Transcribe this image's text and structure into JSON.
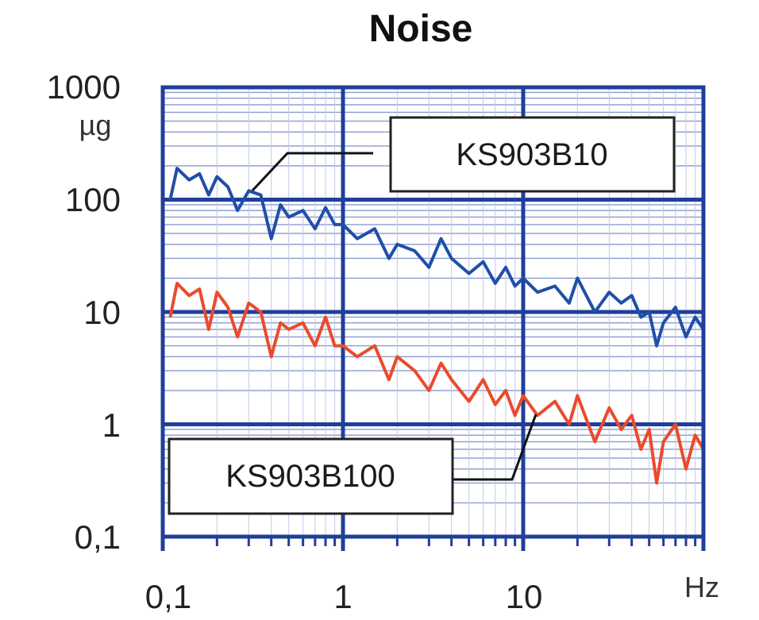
{
  "chart_data": {
    "type": "line",
    "title": "Noise",
    "xscale": "log",
    "yscale": "log",
    "xlim": [
      0.1,
      100
    ],
    "ylim": [
      0.1,
      1000
    ],
    "xlabel": "Hz",
    "ylabel": "µg",
    "x_ticks": [
      {
        "value": 0.1,
        "label": "0,1"
      },
      {
        "value": 1,
        "label": "1"
      },
      {
        "value": 10,
        "label": "10"
      }
    ],
    "y_ticks": [
      {
        "value": 0.1,
        "label": "0,1"
      },
      {
        "value": 1,
        "label": "1"
      },
      {
        "value": 10,
        "label": "10"
      },
      {
        "value": 100,
        "label": "100"
      },
      {
        "value": 1000,
        "label": "1000"
      }
    ],
    "grid": true,
    "series": [
      {
        "name": "KS903B10",
        "color": "#1f4fa8",
        "x": [
          0.11,
          0.12,
          0.14,
          0.16,
          0.18,
          0.2,
          0.23,
          0.26,
          0.3,
          0.35,
          0.4,
          0.45,
          0.5,
          0.6,
          0.7,
          0.8,
          0.9,
          1,
          1.2,
          1.5,
          1.8,
          2,
          2.5,
          3,
          3.5,
          4,
          5,
          6,
          7,
          8,
          9,
          10,
          12,
          15,
          18,
          20,
          25,
          30,
          35,
          40,
          45,
          50,
          55,
          60,
          70,
          80,
          90,
          100
        ],
        "values": [
          100,
          190,
          150,
          170,
          110,
          160,
          130,
          80,
          120,
          110,
          45,
          90,
          70,
          80,
          55,
          85,
          60,
          60,
          45,
          55,
          30,
          40,
          35,
          25,
          45,
          30,
          22,
          28,
          18,
          25,
          17,
          20,
          15,
          17,
          12,
          20,
          10,
          15,
          12,
          14,
          9,
          10,
          5,
          8,
          11,
          6,
          9,
          7
        ]
      },
      {
        "name": "KS903B100",
        "color": "#ea4b2c",
        "x": [
          0.11,
          0.12,
          0.14,
          0.16,
          0.18,
          0.2,
          0.23,
          0.26,
          0.3,
          0.35,
          0.4,
          0.45,
          0.5,
          0.6,
          0.7,
          0.8,
          0.9,
          1,
          1.2,
          1.5,
          1.8,
          2,
          2.5,
          3,
          3.5,
          4,
          5,
          6,
          7,
          8,
          9,
          10,
          12,
          15,
          18,
          20,
          25,
          30,
          35,
          40,
          45,
          50,
          55,
          60,
          70,
          80,
          90,
          100
        ],
        "values": [
          9,
          18,
          14,
          16,
          7,
          15,
          11,
          6,
          12,
          10,
          4,
          8,
          7,
          8,
          5,
          9,
          5,
          5,
          4,
          5,
          2.5,
          4,
          3,
          2,
          3.5,
          2.5,
          1.6,
          2.5,
          1.5,
          2,
          1.2,
          1.8,
          1.2,
          1.6,
          1,
          1.8,
          0.7,
          1.4,
          0.9,
          1.2,
          0.6,
          0.9,
          0.3,
          0.7,
          1,
          0.4,
          0.8,
          0.6
        ]
      }
    ],
    "annotations": [
      {
        "text": "KS903B10",
        "series": "KS903B10",
        "position": "upper-middle"
      },
      {
        "text": "KS903B100",
        "series": "KS903B100",
        "position": "lower-left"
      }
    ]
  }
}
